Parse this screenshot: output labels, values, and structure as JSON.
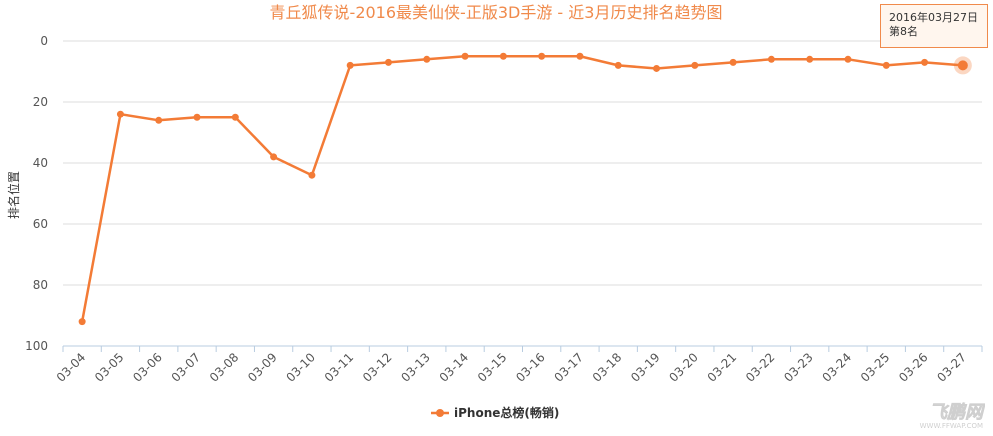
{
  "chart_data": {
    "type": "line",
    "title": "青丘狐传说-2016最美仙侠-正版3D手游 - 近3月历史排名趋势图",
    "xlabel": "",
    "ylabel": "排名位置",
    "ylim": [
      0,
      100
    ],
    "y_reversed": true,
    "y_ticks": [
      0,
      20,
      40,
      60,
      80,
      100
    ],
    "grid": true,
    "legend_position": "bottom-center",
    "categories": [
      "03-04",
      "03-05",
      "03-06",
      "03-07",
      "03-08",
      "03-09",
      "03-10",
      "03-11",
      "03-12",
      "03-13",
      "03-14",
      "03-15",
      "03-16",
      "03-17",
      "03-18",
      "03-19",
      "03-20",
      "03-21",
      "03-22",
      "03-23",
      "03-24",
      "03-25",
      "03-26",
      "03-27"
    ],
    "series": [
      {
        "name": "iPhone总榜(畅销)",
        "color": "#f37b36",
        "values": [
          92,
          24,
          26,
          25,
          25,
          38,
          44,
          8,
          7,
          6,
          5,
          5,
          5,
          5,
          8,
          9,
          8,
          7,
          6,
          6,
          6,
          8,
          7,
          8
        ]
      }
    ]
  },
  "tooltip": {
    "date": "2016年03月27日",
    "rank": "第8名",
    "index": 23
  },
  "watermark": {
    "text": "飞鹏网",
    "subtext": "WWW.FFWAP.COM"
  }
}
